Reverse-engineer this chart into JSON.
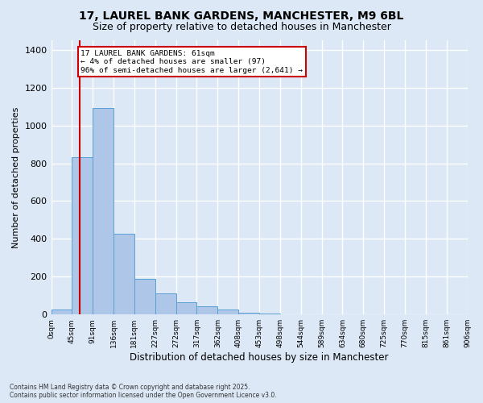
{
  "title_line1": "17, LAUREL BANK GARDENS, MANCHESTER, M9 6BL",
  "title_line2": "Size of property relative to detached houses in Manchester",
  "xlabel": "Distribution of detached houses by size in Manchester",
  "ylabel": "Number of detached properties",
  "bar_color": "#aec6e8",
  "bar_edge_color": "#5a9fd4",
  "background_color": "#dce8f5",
  "grid_color": "#ffffff",
  "bins": [
    "0sqm",
    "45sqm",
    "91sqm",
    "136sqm",
    "181sqm",
    "227sqm",
    "272sqm",
    "317sqm",
    "362sqm",
    "408sqm",
    "453sqm",
    "498sqm",
    "544sqm",
    "589sqm",
    "634sqm",
    "680sqm",
    "725sqm",
    "770sqm",
    "815sqm",
    "861sqm",
    "906sqm"
  ],
  "values": [
    25,
    830,
    1090,
    425,
    190,
    110,
    65,
    42,
    25,
    10,
    5,
    0,
    0,
    0,
    0,
    0,
    0,
    0,
    0,
    0
  ],
  "annotation_title": "17 LAUREL BANK GARDENS: 61sqm",
  "annotation_line2": "← 4% of detached houses are smaller (97)",
  "annotation_line3": "96% of semi-detached houses are larger (2,641) →",
  "annotation_box_color": "#ffffff",
  "annotation_border_color": "#cc0000",
  "vline_color": "#cc0000",
  "vline_x": 61,
  "ylim": [
    0,
    1450
  ],
  "yticks": [
    0,
    200,
    400,
    600,
    800,
    1000,
    1200,
    1400
  ],
  "bin_width": 45,
  "footnote_line1": "Contains HM Land Registry data © Crown copyright and database right 2025.",
  "footnote_line2": "Contains public sector information licensed under the Open Government Licence v3.0."
}
